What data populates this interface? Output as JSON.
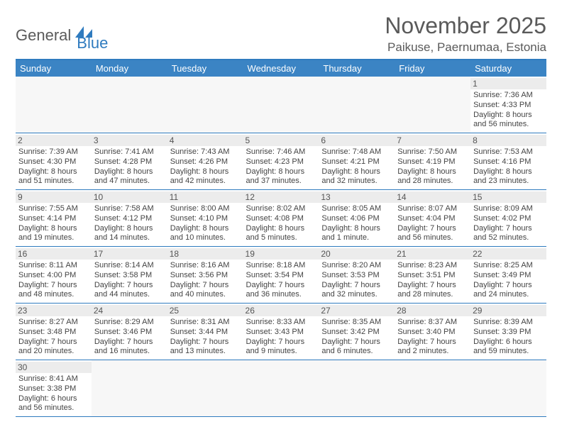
{
  "logo": {
    "part1": "General",
    "part2": "Blue"
  },
  "title": "November 2025",
  "location": "Paikuse, Paernumaa, Estonia",
  "colors": {
    "header_bg": "#3b84c4",
    "border": "#2f7bbf",
    "empty_bg": "#f7f7f7",
    "daynum_bg": "#ececec",
    "text": "#444444",
    "title_text": "#5a5a5a"
  },
  "days_of_week": [
    "Sunday",
    "Monday",
    "Tuesday",
    "Wednesday",
    "Thursday",
    "Friday",
    "Saturday"
  ],
  "weeks": [
    [
      null,
      null,
      null,
      null,
      null,
      null,
      {
        "day": 1,
        "sunrise": "7:36 AM",
        "sunset": "4:33 PM",
        "daylight": "8 hours and 56 minutes."
      }
    ],
    [
      {
        "day": 2,
        "sunrise": "7:39 AM",
        "sunset": "4:30 PM",
        "daylight": "8 hours and 51 minutes."
      },
      {
        "day": 3,
        "sunrise": "7:41 AM",
        "sunset": "4:28 PM",
        "daylight": "8 hours and 47 minutes."
      },
      {
        "day": 4,
        "sunrise": "7:43 AM",
        "sunset": "4:26 PM",
        "daylight": "8 hours and 42 minutes."
      },
      {
        "day": 5,
        "sunrise": "7:46 AM",
        "sunset": "4:23 PM",
        "daylight": "8 hours and 37 minutes."
      },
      {
        "day": 6,
        "sunrise": "7:48 AM",
        "sunset": "4:21 PM",
        "daylight": "8 hours and 32 minutes."
      },
      {
        "day": 7,
        "sunrise": "7:50 AM",
        "sunset": "4:19 PM",
        "daylight": "8 hours and 28 minutes."
      },
      {
        "day": 8,
        "sunrise": "7:53 AM",
        "sunset": "4:16 PM",
        "daylight": "8 hours and 23 minutes."
      }
    ],
    [
      {
        "day": 9,
        "sunrise": "7:55 AM",
        "sunset": "4:14 PM",
        "daylight": "8 hours and 19 minutes."
      },
      {
        "day": 10,
        "sunrise": "7:58 AM",
        "sunset": "4:12 PM",
        "daylight": "8 hours and 14 minutes."
      },
      {
        "day": 11,
        "sunrise": "8:00 AM",
        "sunset": "4:10 PM",
        "daylight": "8 hours and 10 minutes."
      },
      {
        "day": 12,
        "sunrise": "8:02 AM",
        "sunset": "4:08 PM",
        "daylight": "8 hours and 5 minutes."
      },
      {
        "day": 13,
        "sunrise": "8:05 AM",
        "sunset": "4:06 PM",
        "daylight": "8 hours and 1 minute."
      },
      {
        "day": 14,
        "sunrise": "8:07 AM",
        "sunset": "4:04 PM",
        "daylight": "7 hours and 56 minutes."
      },
      {
        "day": 15,
        "sunrise": "8:09 AM",
        "sunset": "4:02 PM",
        "daylight": "7 hours and 52 minutes."
      }
    ],
    [
      {
        "day": 16,
        "sunrise": "8:11 AM",
        "sunset": "4:00 PM",
        "daylight": "7 hours and 48 minutes."
      },
      {
        "day": 17,
        "sunrise": "8:14 AM",
        "sunset": "3:58 PM",
        "daylight": "7 hours and 44 minutes."
      },
      {
        "day": 18,
        "sunrise": "8:16 AM",
        "sunset": "3:56 PM",
        "daylight": "7 hours and 40 minutes."
      },
      {
        "day": 19,
        "sunrise": "8:18 AM",
        "sunset": "3:54 PM",
        "daylight": "7 hours and 36 minutes."
      },
      {
        "day": 20,
        "sunrise": "8:20 AM",
        "sunset": "3:53 PM",
        "daylight": "7 hours and 32 minutes."
      },
      {
        "day": 21,
        "sunrise": "8:23 AM",
        "sunset": "3:51 PM",
        "daylight": "7 hours and 28 minutes."
      },
      {
        "day": 22,
        "sunrise": "8:25 AM",
        "sunset": "3:49 PM",
        "daylight": "7 hours and 24 minutes."
      }
    ],
    [
      {
        "day": 23,
        "sunrise": "8:27 AM",
        "sunset": "3:48 PM",
        "daylight": "7 hours and 20 minutes."
      },
      {
        "day": 24,
        "sunrise": "8:29 AM",
        "sunset": "3:46 PM",
        "daylight": "7 hours and 16 minutes."
      },
      {
        "day": 25,
        "sunrise": "8:31 AM",
        "sunset": "3:44 PM",
        "daylight": "7 hours and 13 minutes."
      },
      {
        "day": 26,
        "sunrise": "8:33 AM",
        "sunset": "3:43 PM",
        "daylight": "7 hours and 9 minutes."
      },
      {
        "day": 27,
        "sunrise": "8:35 AM",
        "sunset": "3:42 PM",
        "daylight": "7 hours and 6 minutes."
      },
      {
        "day": 28,
        "sunrise": "8:37 AM",
        "sunset": "3:40 PM",
        "daylight": "7 hours and 2 minutes."
      },
      {
        "day": 29,
        "sunrise": "8:39 AM",
        "sunset": "3:39 PM",
        "daylight": "6 hours and 59 minutes."
      }
    ],
    [
      {
        "day": 30,
        "sunrise": "8:41 AM",
        "sunset": "3:38 PM",
        "daylight": "6 hours and 56 minutes."
      },
      null,
      null,
      null,
      null,
      null,
      null
    ]
  ]
}
